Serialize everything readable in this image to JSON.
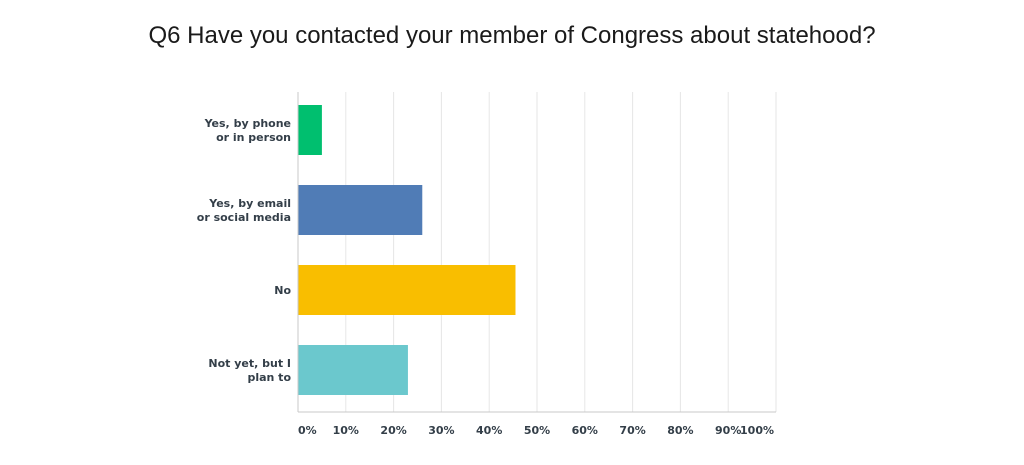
{
  "chart_data": {
    "type": "bar",
    "orientation": "horizontal",
    "title": "Q6 Have you contacted your member of Congress about statehood?",
    "categories": [
      [
        "Yes, by phone",
        "or in person"
      ],
      [
        "Yes, by email",
        "or social media"
      ],
      [
        "No"
      ],
      [
        "Not yet, but I",
        "plan to"
      ]
    ],
    "values": [
      5,
      26,
      45.5,
      23
    ],
    "colors": [
      "#00bf6f",
      "#507cb6",
      "#f9be00",
      "#6bc8cd"
    ],
    "xlim": [
      0,
      100
    ],
    "xticks": [
      "0%",
      "10%",
      "20%",
      "30%",
      "40%",
      "50%",
      "60%",
      "70%",
      "80%",
      "90%",
      "100%"
    ],
    "xlabel": "",
    "ylabel": "",
    "grid": true,
    "legend": "none"
  }
}
